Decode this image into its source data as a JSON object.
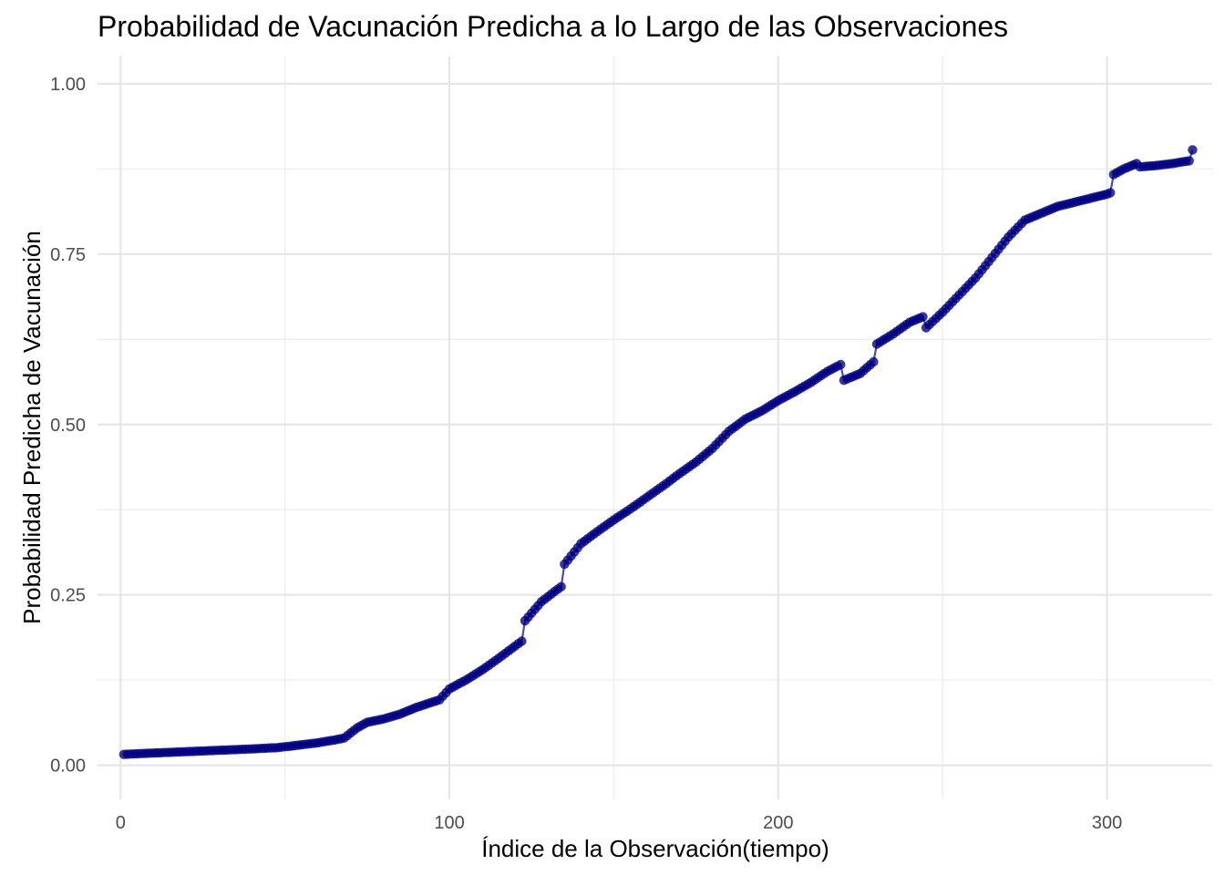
{
  "chart_data": {
    "type": "scatter",
    "title": "Probabilidad de Vacunación Predicha a lo Largo de las Observaciones",
    "xlabel": "Índice de la Observación(tiempo)",
    "ylabel": "Probabilidad Predicha de Vacunación",
    "xlim": [
      -7,
      332
    ],
    "ylim": [
      -0.05,
      1.04
    ],
    "x_ticks": [
      0,
      100,
      200,
      300
    ],
    "x_tick_labels": [
      "0",
      "100",
      "200",
      "300"
    ],
    "y_ticks": [
      0,
      0.25,
      0.5,
      0.75,
      1.0
    ],
    "y_tick_labels": [
      "0.00",
      "0.25",
      "0.50",
      "0.75",
      "1.00"
    ],
    "grid": true,
    "point_color": "#000080",
    "line_color": "#3a3aa8",
    "series": [
      {
        "x": [
          1,
          10,
          20,
          30,
          40,
          48,
          55,
          60,
          65,
          68,
          72,
          75,
          80,
          85,
          90,
          95,
          97,
          100,
          105,
          110,
          115,
          120,
          122,
          123,
          128,
          132,
          134,
          135,
          140,
          145,
          150,
          155,
          160,
          165,
          170,
          175,
          180,
          185,
          190,
          195,
          200,
          205,
          210,
          215,
          219,
          220,
          225,
          229,
          230,
          235,
          240,
          244,
          245,
          250,
          255,
          260,
          265,
          270,
          275,
          280,
          285,
          290,
          295,
          300,
          301,
          302,
          305,
          309,
          310,
          315,
          320,
          325,
          326
        ],
        "y": [
          0.016,
          0.018,
          0.02,
          0.022,
          0.024,
          0.026,
          0.03,
          0.033,
          0.037,
          0.04,
          0.055,
          0.063,
          0.068,
          0.075,
          0.085,
          0.093,
          0.096,
          0.112,
          0.125,
          0.14,
          0.157,
          0.175,
          0.182,
          0.212,
          0.24,
          0.255,
          0.262,
          0.295,
          0.325,
          0.343,
          0.36,
          0.376,
          0.393,
          0.41,
          0.428,
          0.445,
          0.465,
          0.49,
          0.508,
          0.52,
          0.535,
          0.548,
          0.562,
          0.578,
          0.588,
          0.565,
          0.575,
          0.592,
          0.618,
          0.633,
          0.65,
          0.658,
          0.642,
          0.665,
          0.69,
          0.715,
          0.745,
          0.775,
          0.8,
          0.81,
          0.82,
          0.826,
          0.832,
          0.838,
          0.84,
          0.867,
          0.875,
          0.883,
          0.878,
          0.88,
          0.883,
          0.887,
          0.903
        ]
      }
    ]
  }
}
